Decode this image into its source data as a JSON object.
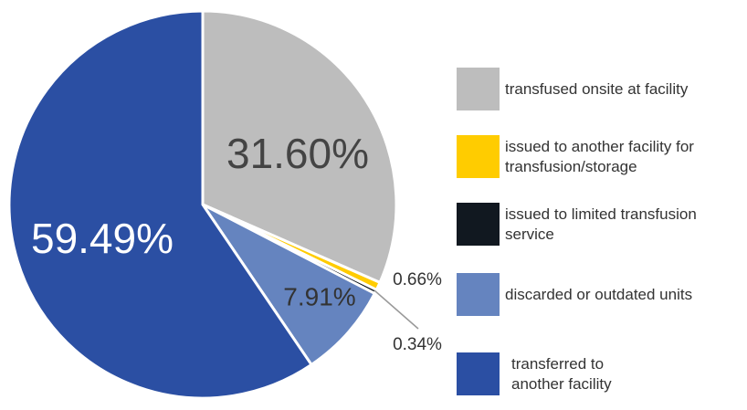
{
  "chart_data": {
    "type": "pie",
    "categories": [
      "transfused onsite at facility",
      "issued to another facility for transfusion/storage",
      "issued to limited transfusion service",
      "discarded or outdated units",
      "transferred to another facility"
    ],
    "values": [
      31.6,
      0.66,
      0.34,
      7.91,
      59.49
    ],
    "value_labels": [
      "31.60%",
      "0.66%",
      "0.34%",
      "7.91%",
      "59.49%"
    ],
    "colors": [
      "#bdbdbd",
      "#ffcc00",
      "#111820",
      "#6584bf",
      "#2b4fa3"
    ]
  }
}
